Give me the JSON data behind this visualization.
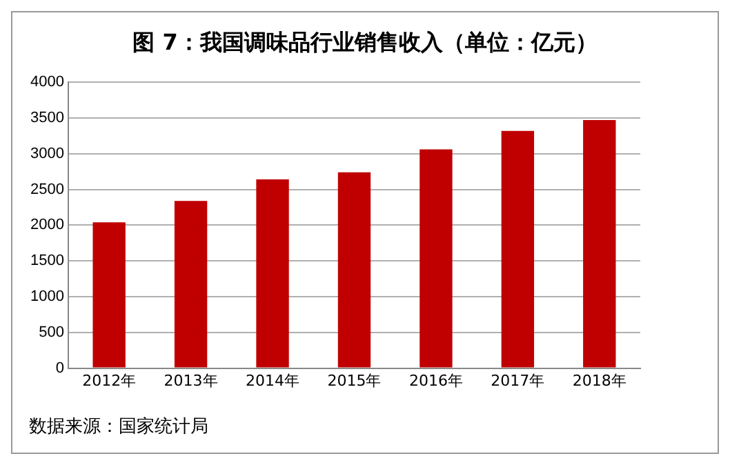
{
  "chart_data": {
    "type": "bar",
    "title": "图 7：我国调味品行业销售收入（单位：亿元）",
    "categories": [
      "2012年",
      "2013年",
      "2014年",
      "2015年",
      "2016年",
      "2017年",
      "2018年"
    ],
    "values": [
      2040,
      2340,
      2640,
      2740,
      3060,
      3320,
      3470
    ],
    "color": "#c00000",
    "ylim": [
      0,
      4000
    ],
    "yticks": [
      0,
      500,
      1000,
      1500,
      2000,
      2500,
      3000,
      3500,
      4000
    ],
    "grid": "y",
    "legend": false,
    "annotations": [
      "数据来源：国家统计局"
    ]
  }
}
